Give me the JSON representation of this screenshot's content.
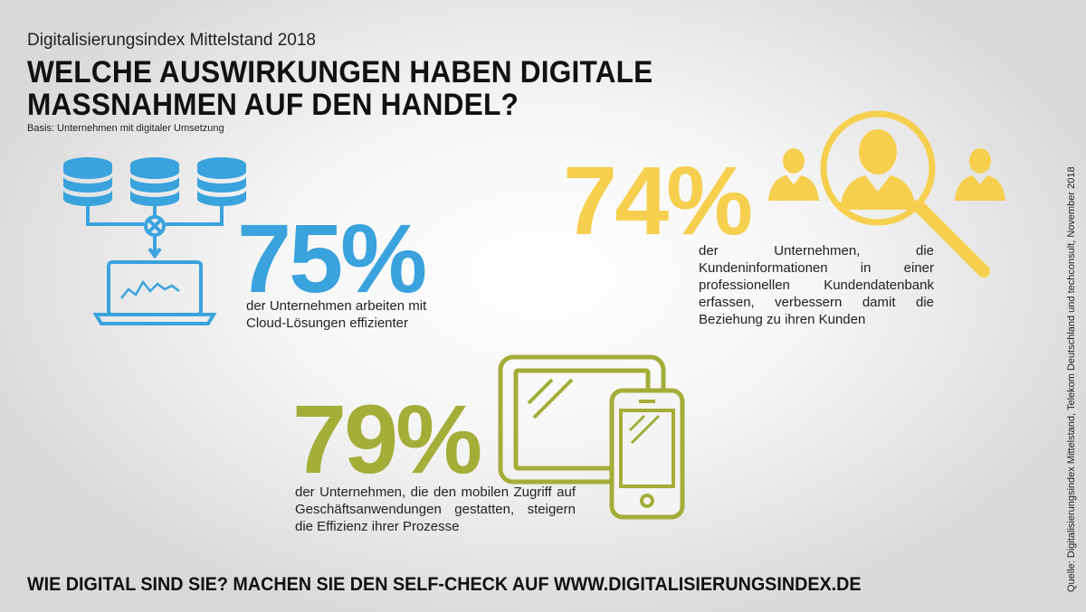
{
  "header": {
    "subtitle": "Digitalisierungsindex Mittelstand 2018",
    "title": "WELCHE AUSWIRKUNGEN HABEN DIGITALE MASSNAHMEN AUF DEN HANDEL?",
    "basis": "Basis: Unternehmen mit digitaler Umsetzung"
  },
  "stats": [
    {
      "value": "75%",
      "description": "der Unternehmen arbeiten mit Cloud-Lösungen effizienter",
      "icon": "cloud-database-laptop-icon",
      "color": "#3aa3dd"
    },
    {
      "value": "74%",
      "description": "der Unternehmen, die Kundeninformationen in einer professionellen Kundendatenbank erfassen, verbessern damit die Beziehung zu ihren Kunden",
      "icon": "customer-search-icon",
      "color": "#f6cf4f"
    },
    {
      "value": "79%",
      "description": "der Unternehmen, die den mobilen Zugriff auf Geschäftsanwendungen gestatten, steigern die Effizienz ihrer Prozesse",
      "icon": "tablet-smartphone-icon",
      "color": "#a2ae38"
    }
  ],
  "footer": {
    "cta": "WIE DIGITAL SIND SIE? MACHEN SIE DEN SELF-CHECK AUF WWW.DIGITALISIERUNGSINDEX.DE",
    "source": "Quelle: Digitalisierungsindex Mittelstand, Telekom Deutschland und techconsult, November 2018"
  }
}
